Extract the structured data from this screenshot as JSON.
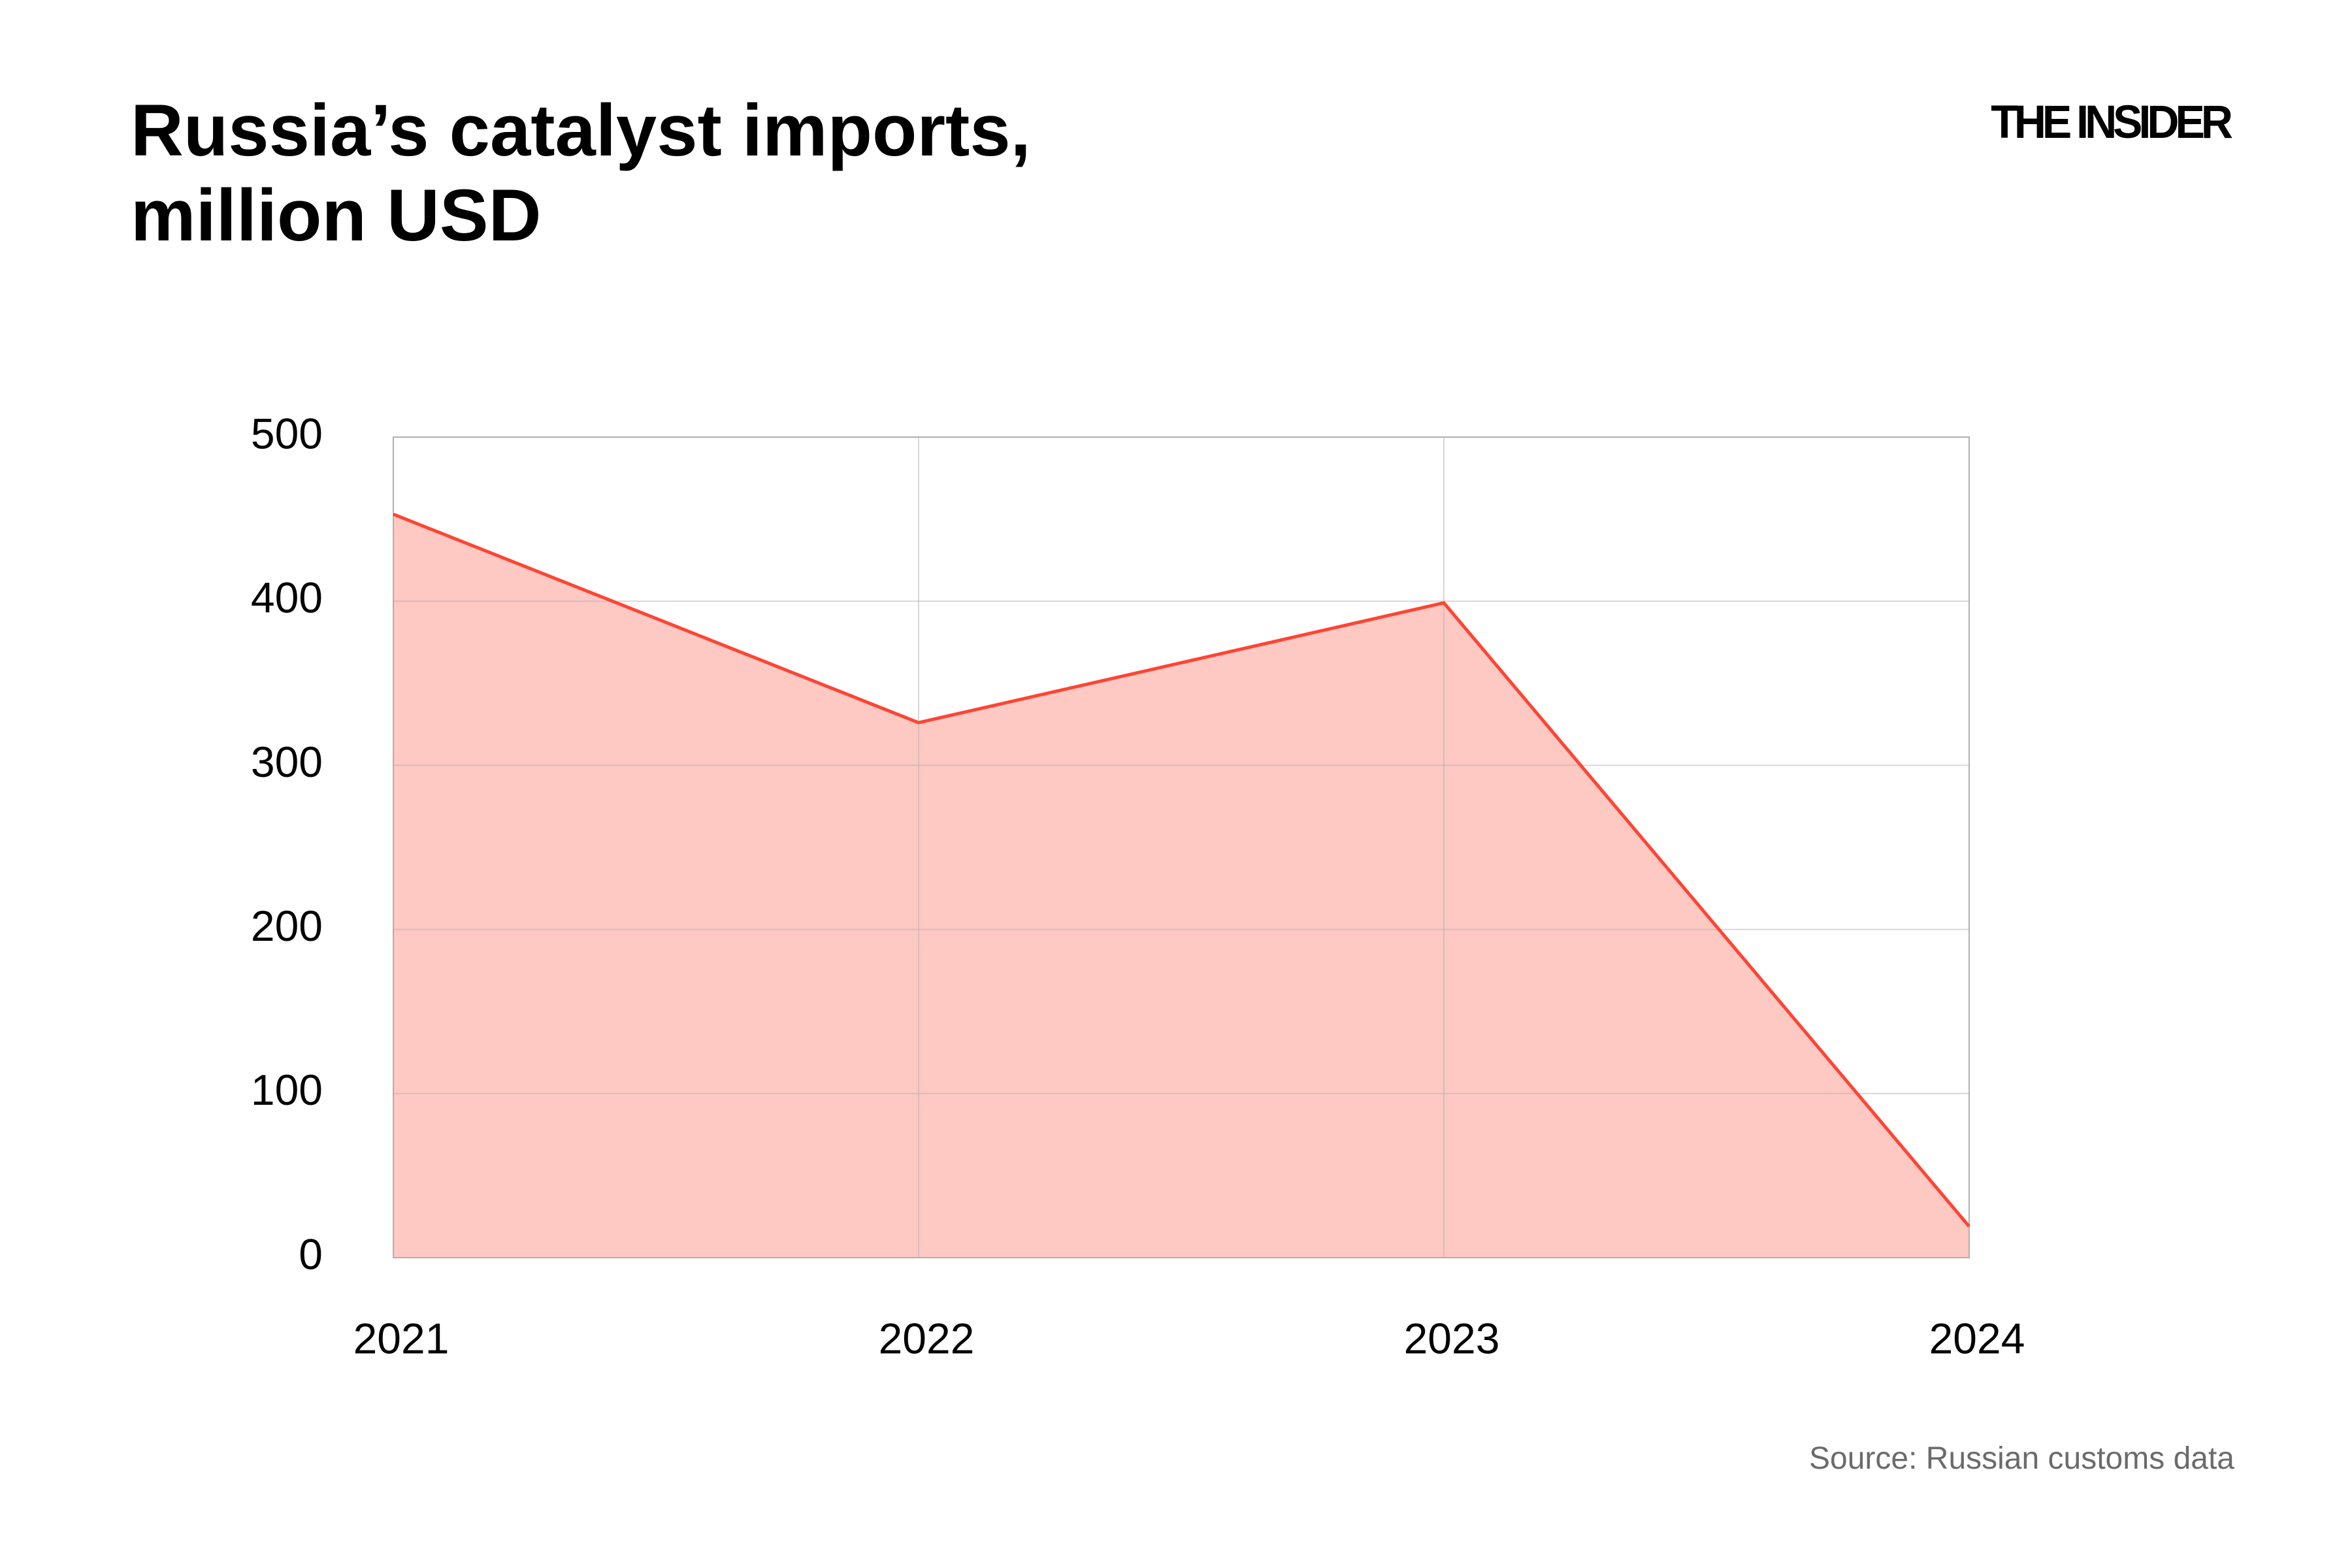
{
  "title": "Russia’s catalyst imports,\nmillion USD",
  "logo": "THE INSIDER",
  "source": "Source: Russian customs data",
  "chart_data": {
    "type": "area",
    "title": "Russia’s catalyst imports, million USD",
    "categories": [
      "2021",
      "2022",
      "2023",
      "2024"
    ],
    "values": [
      453,
      326,
      399,
      19
    ],
    "ylim": [
      0,
      500
    ],
    "yticks": [
      0,
      100,
      200,
      300,
      400,
      500
    ],
    "xlabel": "",
    "ylabel": "",
    "grid": true,
    "colors": {
      "line": "#ff4433",
      "fill": "#fec8c3",
      "grid": "#b0b0b0"
    }
  }
}
